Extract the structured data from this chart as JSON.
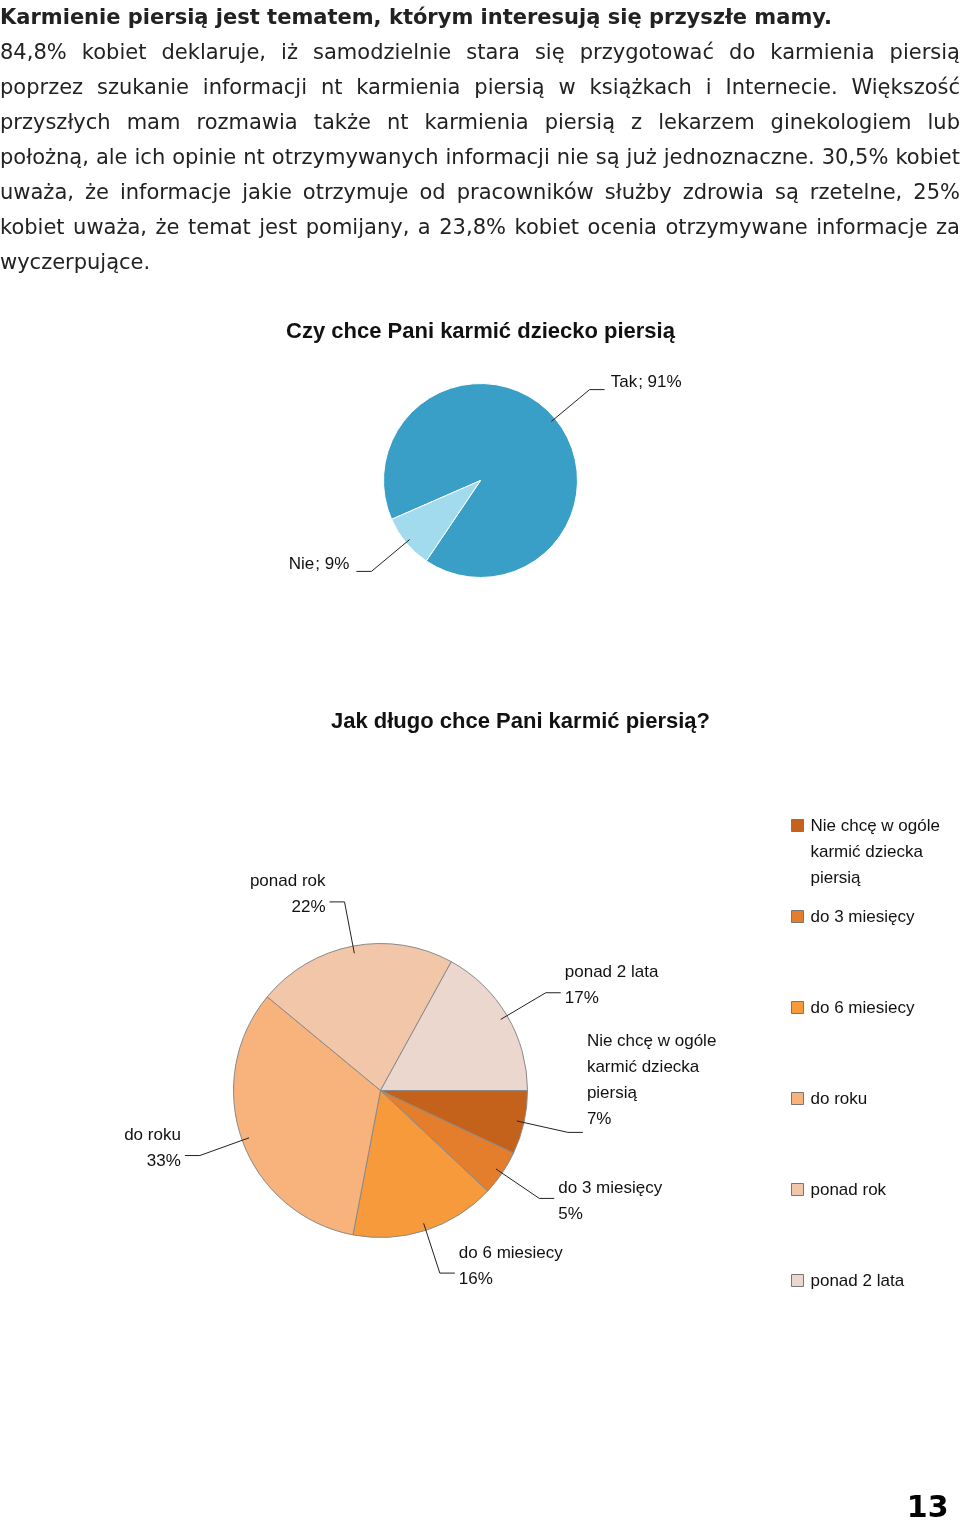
{
  "chart_data": [
    {
      "type": "other",
      "title": "Karmienie piersią jest tematem, którym interesują się przyszłe mamy.",
      "annotations": [
        "84,8% kobiet deklaruje, iż samodzielnie stara się przygotować do karmienia piersią poprzez szukanie informacji nt karmienia piersią w książkach i Internecie. Większość przyszłych mam rozmawia także nt karmienia piersią z lekarzem ginekologiem lub położną, ale ich opinie nt otrzymywanych informacji nie są już jednoznaczne. 30,5% kobiet uważa, że informacje jakie otrzymuje od pracowników służby zdrowia są rzetelne, 25% kobiet uważa, że temat jest pomijany, a 23,8% kobiet ocenia otrzymywane informacje za wyczerpujące."
      ]
    },
    {
      "type": "pie",
      "title": "Czy chce Pani karmić dziecko piersią",
      "categories": [
        "Tak",
        "Nie"
      ],
      "values": [
        91,
        9
      ],
      "colors": [
        "#3a9fc6",
        "#a3dbee"
      ],
      "value_labels": [
        "; 91%",
        "; 9%"
      ],
      "legend": false
    },
    {
      "type": "pie",
      "title": "Jak długo chce Pani karmić piersią?",
      "categories": [
        "Nie chcę w ogóle karmić dziecka piersią",
        "do 3 miesięcy",
        "do 6 miesiecy",
        "do roku",
        "ponad rok",
        "ponad 2 lata"
      ],
      "values": [
        7,
        5,
        16,
        33,
        22,
        17
      ],
      "colors": [
        "#c4621c",
        "#e47e2c",
        "#f69a3c",
        "#f8b27c",
        "#f2c6a8",
        "#ecd7ce"
      ],
      "value_labels": [
        "7%",
        "5%",
        "16%",
        "33%",
        "22%",
        "17%"
      ],
      "legend": "right",
      "annotations": [
        "13"
      ]
    }
  ]
}
